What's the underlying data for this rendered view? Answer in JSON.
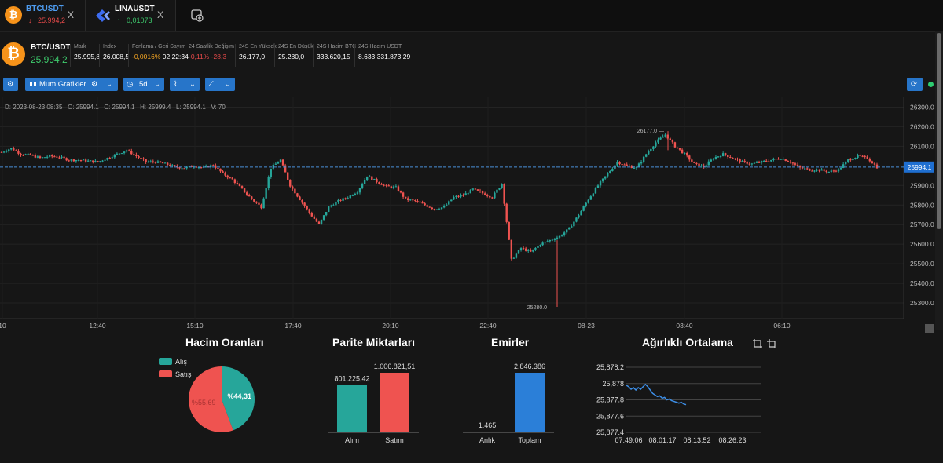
{
  "tabs": [
    {
      "symbol": "BTCUSDT",
      "price": "25.994,2",
      "arrow": "↓",
      "price_color": "#e84a4a",
      "icon": "bitcoin-icon"
    },
    {
      "symbol": "LINAUSDT",
      "price": "0,01073",
      "arrow": "↑",
      "price_color": "#3ecb6d",
      "icon": "lina-icon"
    }
  ],
  "header": {
    "pair": "BTC/USDT",
    "price": "25.994,2",
    "stats": [
      {
        "label": "Mark",
        "value": "25.995,8"
      },
      {
        "label": "Index",
        "value": "26.008,5"
      },
      {
        "label": "Fonlama / Geri Sayım",
        "value": "-0,0016%",
        "value2": "02:22:34"
      },
      {
        "label": "24 Saatlik Değişim",
        "value": "-0,11%",
        "value2": "-28,3"
      },
      {
        "label": "24S En Yüksek",
        "value": "26.177,0"
      },
      {
        "label": "24S En Düşük",
        "value": "25.280,0"
      },
      {
        "label": "24S Hacim BTC",
        "value": "333.620,15"
      },
      {
        "label": "24S Hacim USDT",
        "value": "8.633.331.873,29"
      }
    ]
  },
  "toolbar": {
    "chart_type": "Mum Grafikler",
    "interval": "5d"
  },
  "ohlc": {
    "date": "D: 2023-08-23 08:35",
    "open": "O: 25994.1",
    "close": "C: 25994.1",
    "high": "H: 25999.4",
    "low": "L: 25994.1",
    "volume": "V: 70"
  },
  "chart_data": [
    {
      "type": "candlestick",
      "price_axis": [
        "26300.0",
        "26200.0",
        "26100.0",
        "26000.0",
        "25900.0",
        "25800.0",
        "25700.0",
        "25600.0",
        "25500.0",
        "25400.0",
        "25300.0"
      ],
      "time_axis": [
        "10",
        "12:40",
        "15:10",
        "17:40",
        "20:10",
        "22:40",
        "08-23",
        "03:40",
        "06:10"
      ],
      "ylim": [
        25220,
        26350
      ],
      "last_price": "25994.1",
      "high_marker": "26177.0",
      "low_marker": "25280.0",
      "close_path": [
        26070,
        26090,
        26060,
        26055,
        26040,
        26050,
        26045,
        26030,
        26030,
        26025,
        26020,
        26040,
        26060,
        26080,
        26050,
        26020,
        26020,
        26010,
        25995,
        25990,
        26000,
        25990,
        26005,
        25960,
        25930,
        25880,
        25830,
        25790,
        25990,
        26030,
        25900,
        25830,
        25760,
        25700,
        25790,
        25820,
        25840,
        25870,
        25950,
        25920,
        25895,
        25890,
        25830,
        25820,
        25800,
        25780,
        25790,
        25840,
        25850,
        25880,
        25860,
        25840,
        25910,
        25520,
        25580,
        25560,
        25600,
        25620,
        25640,
        25680,
        25750,
        25830,
        25900,
        25960,
        26020,
        26000,
        25990,
        26060,
        26120,
        26160,
        26100,
        26060,
        26010,
        25995,
        26040,
        26060,
        26040,
        26020,
        26010,
        26020,
        26030,
        26040,
        26020,
        25990,
        25980,
        25980,
        25970,
        25980,
        26030,
        26050,
        26040,
        25994
      ]
    },
    {
      "type": "pie",
      "title": "Hacim Oranları",
      "legend": [
        "Alış",
        "Satış"
      ],
      "values": [
        44.31,
        55.69
      ],
      "labels": [
        "%44,31",
        "%55,69"
      ],
      "colors": [
        "#26a69a",
        "#ef5350"
      ]
    },
    {
      "type": "bar",
      "title": "Parite Miktarları",
      "categories": [
        "Alım",
        "Satım"
      ],
      "values": [
        801225.42,
        1006821.51
      ],
      "labels": [
        "801.225,42",
        "1.006.821,51"
      ],
      "colors": [
        "#26a69a",
        "#ef5350"
      ]
    },
    {
      "type": "bar",
      "title": "Emirler",
      "categories": [
        "Anlık",
        "Toplam"
      ],
      "values": [
        1465,
        2846386
      ],
      "labels": [
        "1.465",
        "2.846.386"
      ],
      "colors": [
        "#2b7fd8",
        "#2b7fd8"
      ]
    },
    {
      "type": "line",
      "title": "Ağırlıklı Ortalama",
      "yticks": [
        "25,878.2",
        "25,878",
        "25,877.8",
        "25,877.6",
        "25,877.4"
      ],
      "xticks": [
        "07:49:06",
        "08:01:17",
        "08:13:52",
        "08:26:23"
      ],
      "ylim": [
        25877.4,
        25878.2
      ],
      "values": [
        25877.98,
        25877.96,
        25877.93,
        25877.95,
        25877.92,
        25877.95,
        25877.93,
        25877.96,
        25877.99,
        25877.96,
        25877.92,
        25877.88,
        25877.86,
        25877.84,
        25877.85,
        25877.82,
        25877.83,
        25877.8,
        25877.81,
        25877.79,
        25877.78,
        25877.77,
        25877.76,
        25877.77,
        25877.75,
        25877.74
      ],
      "color": "#3d8ee6"
    }
  ]
}
